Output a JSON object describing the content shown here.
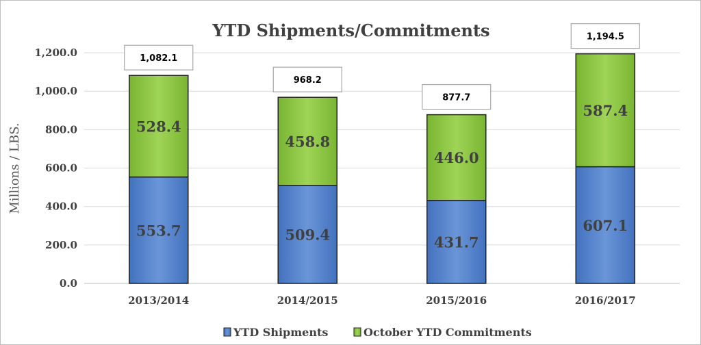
{
  "chart_data": {
    "type": "bar",
    "stacked": true,
    "title": "YTD Shipments/Commitments",
    "ylabel": "Millions / LBS.",
    "xlabel": "",
    "categories": [
      "2013/2014",
      "2014/2015",
      "2015/2016",
      "2016/2017"
    ],
    "series": [
      {
        "name": "YTD Shipments",
        "values": [
          553.7,
          509.4,
          431.7,
          607.1
        ],
        "labels": [
          "553.7",
          "509.4",
          "431.7",
          "607.1"
        ],
        "color": "#4f7ec5"
      },
      {
        "name": "October YTD Commitments",
        "values": [
          528.4,
          458.8,
          446.0,
          587.4
        ],
        "labels": [
          "528.4",
          "458.8",
          "446.0",
          "587.4"
        ],
        "color": "#8cc63e"
      }
    ],
    "totals": [
      "1,082.1",
      "968.2",
      "877.7",
      "1,194.5"
    ],
    "ylim": [
      0,
      1300
    ],
    "yticks": [
      0,
      200,
      400,
      600,
      800,
      1000,
      1200
    ],
    "ytick_labels": [
      "0.0",
      "200.0",
      "400.0",
      "600.0",
      "800.0",
      "1,000.0",
      "1,200.0"
    ],
    "grid": true,
    "legend_position": "bottom"
  }
}
